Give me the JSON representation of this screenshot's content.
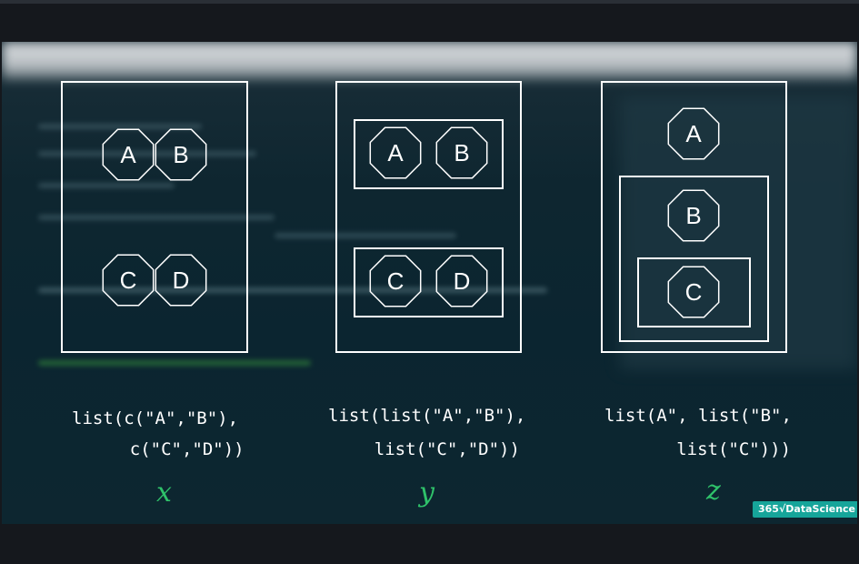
{
  "panels": [
    {
      "variable": "x",
      "code_lines": [
        "list(c(\"A\",\"B\"),",
        "    c(\"C\",\"D\"))"
      ],
      "nodes": [
        "A",
        "B",
        "C",
        "D"
      ]
    },
    {
      "variable": "y",
      "code_lines": [
        "list(list(\"A\",\"B\"),",
        "    list(\"C\",\"D\"))"
      ],
      "nodes": [
        "A",
        "B",
        "C",
        "D"
      ]
    },
    {
      "variable": "z",
      "code_lines": [
        "list(A\", list(\"B\",",
        "     list(\"C\")))"
      ],
      "nodes": [
        "A",
        "B",
        "C"
      ]
    }
  ],
  "logo": "365√DataScience",
  "colors": {
    "background": "#0b2530",
    "stroke": "#ffffff",
    "variable": "#2fc26a",
    "logo": "#16a59a"
  }
}
